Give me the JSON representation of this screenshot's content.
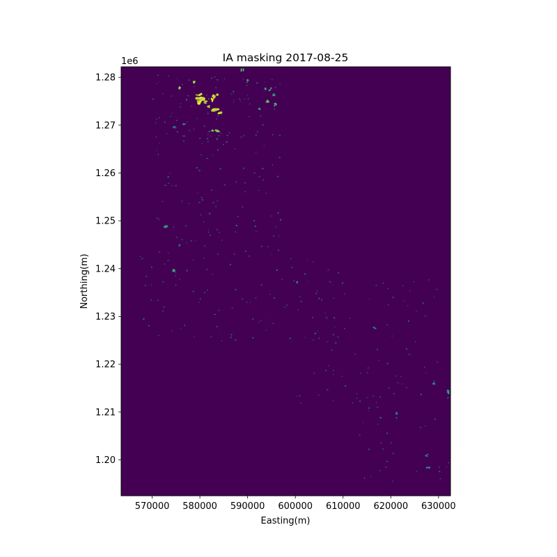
{
  "chart_data": {
    "type": "heatmap",
    "title": "IA masking 2017-08-25",
    "xlabel": "Easting(m)",
    "ylabel": "Northing(m)",
    "y_offset_label": "1e6",
    "xlim": [
      563500,
      632500
    ],
    "ylim": [
      1192500,
      1282200
    ],
    "x_ticks": [
      570000,
      580000,
      590000,
      600000,
      610000,
      620000,
      630000
    ],
    "x_tick_labels": [
      "570000",
      "580000",
      "590000",
      "600000",
      "610000",
      "620000",
      "630000"
    ],
    "y_ticks": [
      1200000,
      1210000,
      1220000,
      1230000,
      1240000,
      1250000,
      1260000,
      1270000,
      1280000
    ],
    "y_tick_labels": [
      "1.20",
      "1.21",
      "1.22",
      "1.23",
      "1.24",
      "1.25",
      "1.26",
      "1.27",
      "1.28"
    ],
    "colormap": "viridis",
    "background_value_color": "#440154",
    "grid": false,
    "legend": "none",
    "masked_clusters": [
      {
        "x": 580000,
        "y": 1275200,
        "rx": 900,
        "ry": 700,
        "level": 1.0
      },
      {
        "x": 579800,
        "y": 1276300,
        "rx": 600,
        "ry": 350,
        "level": 1.0
      },
      {
        "x": 581200,
        "y": 1274800,
        "rx": 500,
        "ry": 300,
        "level": 0.95
      },
      {
        "x": 582700,
        "y": 1275600,
        "rx": 450,
        "ry": 700,
        "level": 1.0
      },
      {
        "x": 583300,
        "y": 1273200,
        "rx": 800,
        "ry": 400,
        "level": 1.0
      },
      {
        "x": 581900,
        "y": 1273900,
        "rx": 350,
        "ry": 250,
        "level": 0.95
      },
      {
        "x": 583700,
        "y": 1276300,
        "rx": 300,
        "ry": 300,
        "level": 0.95
      },
      {
        "x": 584200,
        "y": 1272600,
        "rx": 450,
        "ry": 250,
        "level": 1.0
      },
      {
        "x": 583600,
        "y": 1268800,
        "rx": 450,
        "ry": 250,
        "level": 0.9
      },
      {
        "x": 582600,
        "y": 1268900,
        "rx": 250,
        "ry": 200,
        "level": 0.9
      },
      {
        "x": 575800,
        "y": 1277800,
        "rx": 250,
        "ry": 300,
        "level": 0.95
      },
      {
        "x": 578800,
        "y": 1279000,
        "rx": 200,
        "ry": 250,
        "level": 0.95
      },
      {
        "x": 588900,
        "y": 1281500,
        "rx": 300,
        "ry": 300,
        "level": 0.8
      },
      {
        "x": 590000,
        "y": 1279200,
        "rx": 200,
        "ry": 400,
        "level": 0.75
      },
      {
        "x": 593700,
        "y": 1277600,
        "rx": 200,
        "ry": 200,
        "level": 0.65
      },
      {
        "x": 594700,
        "y": 1277500,
        "rx": 300,
        "ry": 350,
        "level": 0.7
      },
      {
        "x": 595500,
        "y": 1276400,
        "rx": 250,
        "ry": 300,
        "level": 0.65
      },
      {
        "x": 594200,
        "y": 1275000,
        "rx": 350,
        "ry": 300,
        "level": 0.85
      },
      {
        "x": 595800,
        "y": 1274300,
        "rx": 250,
        "ry": 350,
        "level": 0.75
      },
      {
        "x": 592500,
        "y": 1273400,
        "rx": 250,
        "ry": 200,
        "level": 0.65
      },
      {
        "x": 574600,
        "y": 1269600,
        "rx": 250,
        "ry": 200,
        "level": 0.55
      },
      {
        "x": 576700,
        "y": 1270300,
        "rx": 300,
        "ry": 250,
        "level": 0.55
      },
      {
        "x": 572800,
        "y": 1248800,
        "rx": 400,
        "ry": 300,
        "level": 0.6
      },
      {
        "x": 574600,
        "y": 1239600,
        "rx": 350,
        "ry": 300,
        "level": 0.65
      },
      {
        "x": 575800,
        "y": 1244900,
        "rx": 300,
        "ry": 200,
        "level": 0.45
      },
      {
        "x": 600400,
        "y": 1237100,
        "rx": 200,
        "ry": 200,
        "level": 0.55
      },
      {
        "x": 616600,
        "y": 1227600,
        "rx": 300,
        "ry": 200,
        "level": 0.55
      },
      {
        "x": 629000,
        "y": 1215900,
        "rx": 250,
        "ry": 250,
        "level": 0.55
      },
      {
        "x": 632000,
        "y": 1214200,
        "rx": 250,
        "ry": 400,
        "level": 0.6
      },
      {
        "x": 621200,
        "y": 1209700,
        "rx": 200,
        "ry": 300,
        "level": 0.5
      },
      {
        "x": 627800,
        "y": 1198300,
        "rx": 400,
        "ry": 250,
        "level": 0.55
      },
      {
        "x": 627500,
        "y": 1200900,
        "rx": 300,
        "ry": 200,
        "level": 0.45
      }
    ],
    "sparse_speckle_regions": [
      {
        "x": [
          570000,
          597000
        ],
        "y": [
          1266000,
          1281000
        ],
        "density": 0.6
      },
      {
        "x": [
          570000,
          597000
        ],
        "y": [
          1243000,
          1266000
        ],
        "density": 0.35
      },
      {
        "x": [
          567000,
          610000
        ],
        "y": [
          1225000,
          1243000
        ],
        "density": 0.3
      },
      {
        "x": [
          600000,
          630000
        ],
        "y": [
          1212000,
          1238000
        ],
        "density": 0.25
      },
      {
        "x": [
          612000,
          632000
        ],
        "y": [
          1195000,
          1214000
        ],
        "density": 0.25
      }
    ]
  }
}
